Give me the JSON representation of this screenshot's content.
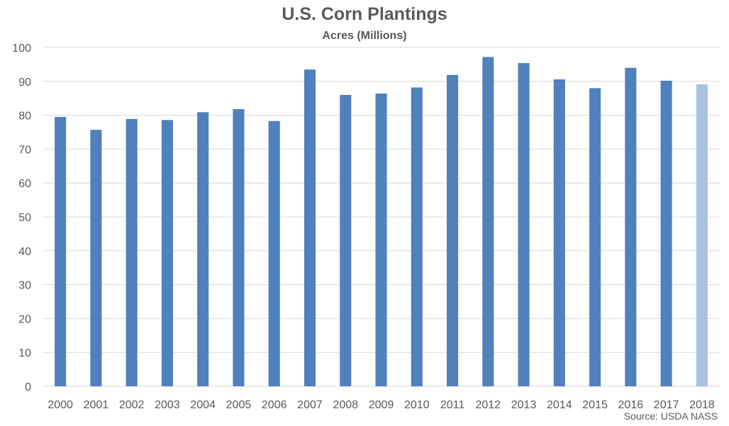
{
  "chart_data": {
    "type": "bar",
    "title": "U.S. Corn Plantings",
    "subtitle": "Acres (Millions)",
    "source": "Source: USDA NASS",
    "categories": [
      "2000",
      "2001",
      "2002",
      "2003",
      "2004",
      "2005",
      "2006",
      "2007",
      "2008",
      "2009",
      "2010",
      "2011",
      "2012",
      "2013",
      "2014",
      "2015",
      "2016",
      "2017",
      "2018"
    ],
    "values": [
      79.5,
      75.7,
      78.9,
      78.6,
      80.9,
      81.8,
      78.3,
      93.5,
      86.0,
      86.4,
      88.2,
      91.9,
      97.2,
      95.4,
      90.6,
      88.0,
      94.0,
      90.2,
      89.1
    ],
    "ylim": [
      0,
      100
    ],
    "yticks": [
      0,
      10,
      20,
      30,
      40,
      50,
      60,
      70,
      80,
      90,
      100
    ],
    "grid": true,
    "colors": {
      "bar": "#4f81bd",
      "bar_highlight": "#a9c1e2",
      "grid": "#d9d9d9",
      "text": "#595959"
    },
    "highlighted_category": "2018"
  }
}
